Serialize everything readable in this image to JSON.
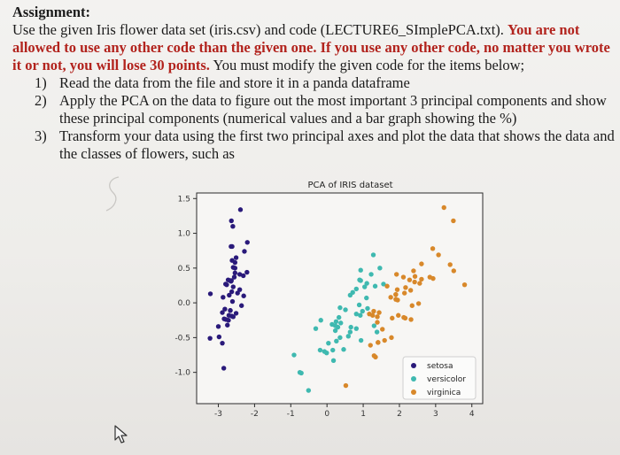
{
  "assignment": {
    "heading": "Assignment:",
    "intro_1": "Use the given Iris flower data set (iris.csv) and code (LECTURE6_SImplePCA.txt). ",
    "warning": "You are not allowed to use any other code than the given one. If you use any other code, no matter you wrote it or not, you will lose 30 points.",
    "intro_2": " You must modify the given code for the items below;",
    "items": [
      {
        "num": "1)",
        "text": "Read the data from the file and store it in a panda dataframe"
      },
      {
        "num": "2)",
        "text": "Apply the PCA on the data to figure out the most important 3 principal components and show these principal components (numerical values and a bar graph showing the %)"
      },
      {
        "num": "3)",
        "text": "Transform your data using the first two principal axes and plot the data that shows the data and the classes of flowers, such as"
      }
    ]
  },
  "chart_data": {
    "type": "scatter",
    "title": "PCA of IRIS dataset",
    "xlabel": "",
    "ylabel": "",
    "xlim": [
      -3.6,
      4.3
    ],
    "ylim": [
      -1.45,
      1.58
    ],
    "xticks": [
      "-3",
      "-2",
      "-1",
      "0",
      "1",
      "2",
      "3",
      "4"
    ],
    "yticks": [
      "1.5",
      "1.0",
      "0.5",
      "0.0",
      "-0.5",
      "-1.0"
    ],
    "legend_position": "lower-right",
    "series": [
      {
        "name": "setosa",
        "color": "#2a1a7a",
        "points": [
          [
            -2.68,
            0.32
          ],
          [
            -2.71,
            -0.18
          ],
          [
            -2.89,
            -0.14
          ],
          [
            -2.75,
            -0.32
          ],
          [
            -2.73,
            0.33
          ],
          [
            -2.28,
            0.74
          ],
          [
            -2.82,
            -0.09
          ],
          [
            -2.63,
            0.16
          ],
          [
            -2.89,
            -0.58
          ],
          [
            -2.67,
            -0.11
          ],
          [
            -2.51,
            0.65
          ],
          [
            -2.61,
            0.02
          ],
          [
            -2.79,
            -0.24
          ],
          [
            -3.23,
            -0.51
          ],
          [
            -2.64,
            1.18
          ],
          [
            -2.39,
            1.34
          ],
          [
            -2.62,
            0.81
          ],
          [
            -2.65,
            0.31
          ],
          [
            -2.2,
            0.87
          ],
          [
            -2.59,
            0.51
          ],
          [
            -2.31,
            0.39
          ],
          [
            -2.54,
            0.43
          ],
          [
            -3.22,
            0.13
          ],
          [
            -2.3,
            0.1
          ],
          [
            -2.36,
            -0.04
          ],
          [
            -2.51,
            -0.15
          ],
          [
            -2.47,
            0.14
          ],
          [
            -2.56,
            0.37
          ],
          [
            -2.64,
            0.32
          ],
          [
            -2.63,
            -0.19
          ],
          [
            -2.59,
            -0.2
          ],
          [
            -2.41,
            0.41
          ],
          [
            -2.65,
            0.81
          ],
          [
            -2.6,
            1.1
          ],
          [
            -2.67,
            -0.11
          ],
          [
            -2.87,
            0.08
          ],
          [
            -2.62,
            0.61
          ],
          [
            -2.8,
            0.27
          ],
          [
            -2.98,
            -0.49
          ],
          [
            -2.59,
            0.23
          ],
          [
            -2.77,
            0.26
          ],
          [
            -2.85,
            -0.94
          ],
          [
            -3.0,
            -0.34
          ],
          [
            -2.41,
            0.19
          ],
          [
            -2.21,
            0.44
          ],
          [
            -2.72,
            -0.25
          ],
          [
            -2.54,
            0.5
          ],
          [
            -2.84,
            -0.23
          ],
          [
            -2.54,
            0.58
          ],
          [
            -2.7,
            0.11
          ]
        ]
      },
      {
        "name": "versicolor",
        "color": "#3fb9b0",
        "points": [
          [
            1.28,
            0.69
          ],
          [
            0.93,
            0.32
          ],
          [
            1.46,
            0.5
          ],
          [
            0.18,
            -0.83
          ],
          [
            1.09,
            0.07
          ],
          [
            0.64,
            -0.42
          ],
          [
            1.1,
            0.28
          ],
          [
            -0.75,
            -1.0
          ],
          [
            1.04,
            0.23
          ],
          [
            -0.01,
            -0.72
          ],
          [
            -0.51,
            -1.26
          ],
          [
            0.51,
            -0.1
          ],
          [
            0.26,
            -0.55
          ],
          [
            0.98,
            -0.12
          ],
          [
            -0.17,
            -0.25
          ],
          [
            0.93,
            0.47
          ],
          [
            0.66,
            -0.35
          ],
          [
            0.23,
            -0.33
          ],
          [
            0.94,
            -0.54
          ],
          [
            0.04,
            -0.58
          ],
          [
            1.12,
            -0.08
          ],
          [
            0.36,
            -0.07
          ],
          [
            1.3,
            -0.33
          ],
          [
            0.92,
            -0.18
          ],
          [
            0.71,
            0.15
          ],
          [
            0.9,
            0.33
          ],
          [
            1.33,
            0.24
          ],
          [
            1.56,
            0.27
          ],
          [
            0.81,
            -0.16
          ],
          [
            -0.31,
            -0.37
          ],
          [
            -0.07,
            -0.7
          ],
          [
            -0.19,
            -0.68
          ],
          [
            0.14,
            -0.31
          ],
          [
            1.38,
            -0.42
          ],
          [
            0.59,
            -0.48
          ],
          [
            0.81,
            0.2
          ],
          [
            1.22,
            0.41
          ],
          [
            0.81,
            -0.37
          ],
          [
            0.25,
            -0.27
          ],
          [
            0.16,
            -0.68
          ],
          [
            0.46,
            -0.67
          ],
          [
            0.89,
            -0.03
          ],
          [
            0.23,
            -0.4
          ],
          [
            -0.71,
            -1.01
          ],
          [
            0.36,
            -0.5
          ],
          [
            0.33,
            -0.21
          ],
          [
            0.38,
            -0.29
          ],
          [
            0.64,
            0.11
          ],
          [
            -0.91,
            -0.75
          ],
          [
            0.3,
            -0.35
          ]
        ]
      },
      {
        "name": "virginica",
        "color": "#d8882a",
        "points": [
          [
            2.53,
            -0.01
          ],
          [
            1.41,
            -0.57
          ],
          [
            2.61,
            0.34
          ],
          [
            1.97,
            -0.18
          ],
          [
            2.35,
            -0.04
          ],
          [
            3.4,
            0.55
          ],
          [
            0.52,
            -1.19
          ],
          [
            2.93,
            0.35
          ],
          [
            2.32,
            -0.24
          ],
          [
            2.92,
            0.78
          ],
          [
            1.66,
            0.24
          ],
          [
            1.8,
            -0.22
          ],
          [
            2.17,
            0.22
          ],
          [
            1.34,
            -0.78
          ],
          [
            1.59,
            -0.54
          ],
          [
            1.9,
            0.12
          ],
          [
            1.95,
            0.04
          ],
          [
            3.49,
            1.18
          ],
          [
            3.8,
            0.26
          ],
          [
            1.3,
            -0.76
          ],
          [
            2.43,
            0.38
          ],
          [
            1.2,
            -0.61
          ],
          [
            3.5,
            0.46
          ],
          [
            1.39,
            -0.2
          ],
          [
            2.28,
            0.33
          ],
          [
            2.61,
            0.56
          ],
          [
            1.26,
            -0.18
          ],
          [
            1.29,
            -0.12
          ],
          [
            2.12,
            -0.21
          ],
          [
            2.39,
            0.46
          ],
          [
            2.84,
            0.37
          ],
          [
            3.23,
            1.37
          ],
          [
            2.16,
            -0.22
          ],
          [
            1.44,
            -0.14
          ],
          [
            1.78,
            -0.5
          ],
          [
            3.08,
            0.69
          ],
          [
            2.14,
            0.14
          ],
          [
            1.9,
            0.05
          ],
          [
            1.17,
            -0.16
          ],
          [
            2.11,
            0.37
          ],
          [
            2.31,
            0.18
          ],
          [
            1.92,
            0.41
          ],
          [
            1.41,
            -0.57
          ],
          [
            2.56,
            0.28
          ],
          [
            2.42,
            0.3
          ],
          [
            1.94,
            0.19
          ],
          [
            1.53,
            -0.38
          ],
          [
            1.76,
            0.08
          ],
          [
            1.9,
            0.12
          ],
          [
            1.39,
            -0.28
          ]
        ]
      }
    ]
  }
}
